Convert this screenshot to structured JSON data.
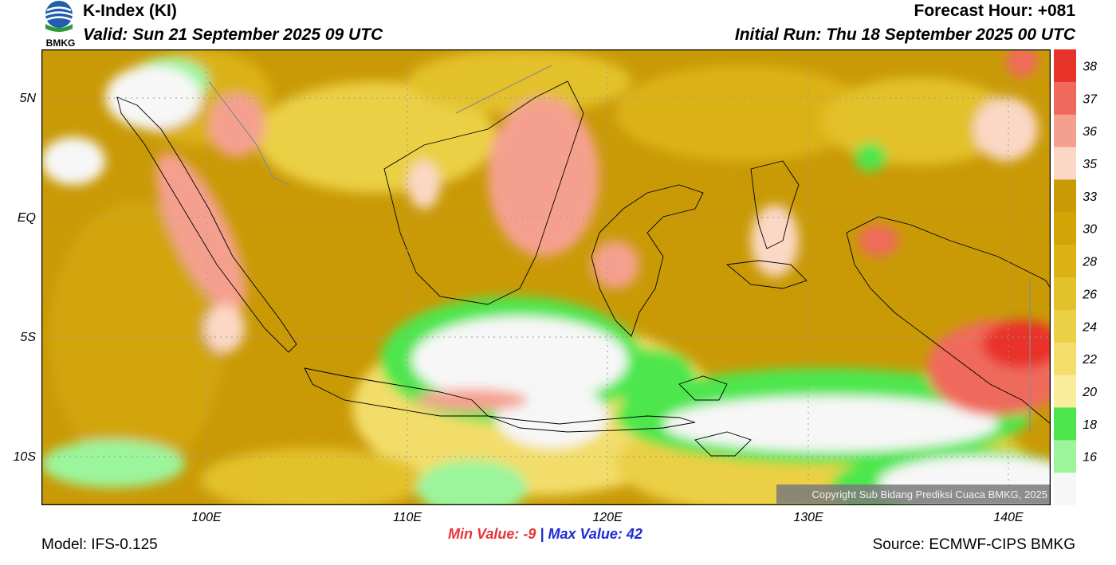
{
  "header": {
    "title": "K-Index (KI)",
    "valid": "Valid: Sun 21 September 2025 09 UTC",
    "forecast_hour": "Forecast Hour: +081",
    "initial_run": "Initial Run: Thu 18 September 2025 00 UTC"
  },
  "logo": {
    "text": "BMKG"
  },
  "map": {
    "lat_labels": [
      "5N",
      "EQ",
      "5S",
      "10S"
    ],
    "lon_labels": [
      "100E",
      "110E",
      "120E",
      "130E",
      "140E"
    ],
    "copyright": "Copyright Sub Bidang Prediksi Cuaca BMKG, 2025"
  },
  "colorbar": {
    "labels": [
      "38",
      "37",
      "36",
      "35",
      "33",
      "30",
      "28",
      "26",
      "24",
      "22",
      "20",
      "18",
      "16"
    ],
    "colors": [
      "#e8332a",
      "#ef6a5c",
      "#f5a08f",
      "#fbd8c6",
      "#c99a06",
      "#d2a507",
      "#dbb212",
      "#e3c12a",
      "#ebcf45",
      "#f3dd6b",
      "#f9ec9b",
      "#4de64d",
      "#9bf59b",
      "#f7f7f7"
    ]
  },
  "footer": {
    "min_label": "Min Value:",
    "min_value": "-9",
    "separator": "|",
    "max_label": "Max Value:",
    "max_value": "42",
    "model": "Model: IFS-0.125",
    "source": "Source: ECMWF-CIPS BMKG"
  }
}
